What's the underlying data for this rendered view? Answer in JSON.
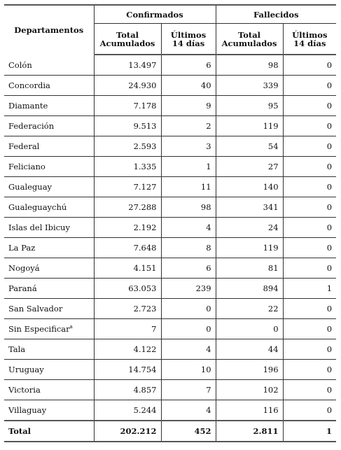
{
  "table": {
    "corner_header": "Departamentos",
    "group_headers": [
      "Confirmados",
      "Fallecidos"
    ],
    "sub_headers": [
      [
        "Total",
        "Acumulados"
      ],
      [
        "Últimos",
        "14 días"
      ],
      [
        "Total",
        "Acumulados"
      ],
      [
        "Últimos",
        "14 días"
      ]
    ],
    "rows": [
      {
        "dep": "Colón",
        "conf_total": "13.497",
        "conf_14": "6",
        "fall_total": "98",
        "fall_14": "0"
      },
      {
        "dep": "Concordia",
        "conf_total": "24.930",
        "conf_14": "40",
        "fall_total": "339",
        "fall_14": "0"
      },
      {
        "dep": "Diamante",
        "conf_total": "7.178",
        "conf_14": "9",
        "fall_total": "95",
        "fall_14": "0"
      },
      {
        "dep": "Federación",
        "conf_total": "9.513",
        "conf_14": "2",
        "fall_total": "119",
        "fall_14": "0"
      },
      {
        "dep": "Federal",
        "conf_total": "2.593",
        "conf_14": "3",
        "fall_total": "54",
        "fall_14": "0"
      },
      {
        "dep": "Feliciano",
        "conf_total": "1.335",
        "conf_14": "1",
        "fall_total": "27",
        "fall_14": "0"
      },
      {
        "dep": "Gualeguay",
        "conf_total": "7.127",
        "conf_14": "11",
        "fall_total": "140",
        "fall_14": "0"
      },
      {
        "dep": "Gualeguaychú",
        "conf_total": "27.288",
        "conf_14": "98",
        "fall_total": "341",
        "fall_14": "0"
      },
      {
        "dep": "Islas del Ibicuy",
        "conf_total": "2.192",
        "conf_14": "4",
        "fall_total": "24",
        "fall_14": "0"
      },
      {
        "dep": "La Paz",
        "conf_total": "7.648",
        "conf_14": "8",
        "fall_total": "119",
        "fall_14": "0"
      },
      {
        "dep": "Nogoyá",
        "conf_total": "4.151",
        "conf_14": "6",
        "fall_total": "81",
        "fall_14": "0"
      },
      {
        "dep": "Paraná",
        "conf_total": "63.053",
        "conf_14": "239",
        "fall_total": "894",
        "fall_14": "1"
      },
      {
        "dep": "San Salvador",
        "conf_total": "2.723",
        "conf_14": "0",
        "fall_total": "22",
        "fall_14": "0"
      },
      {
        "dep": "Sin Especificar",
        "sup": "a",
        "conf_total": "7",
        "conf_14": "0",
        "fall_total": "0",
        "fall_14": "0"
      },
      {
        "dep": "Tala",
        "conf_total": "4.122",
        "conf_14": "4",
        "fall_total": "44",
        "fall_14": "0"
      },
      {
        "dep": "Uruguay",
        "conf_total": "14.754",
        "conf_14": "10",
        "fall_total": "196",
        "fall_14": "0"
      },
      {
        "dep": "Victoria",
        "conf_total": "4.857",
        "conf_14": "7",
        "fall_total": "102",
        "fall_14": "0"
      },
      {
        "dep": "Villaguay",
        "conf_total": "5.244",
        "conf_14": "4",
        "fall_total": "116",
        "fall_14": "0"
      }
    ],
    "total": {
      "dep": "Total",
      "conf_total": "202.212",
      "conf_14": "452",
      "fall_total": "2.811",
      "fall_14": "1"
    }
  }
}
